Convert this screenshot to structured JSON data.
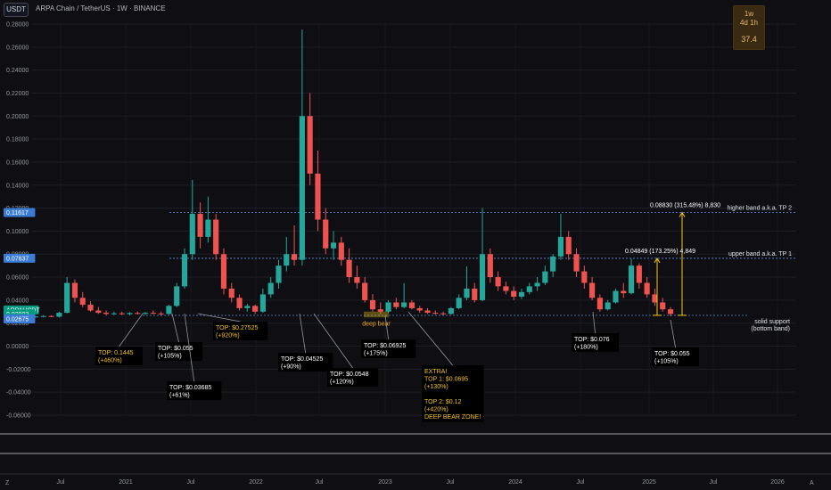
{
  "header": {
    "currency_button": "USDT",
    "title": "ARPA Chain / TetherUS · 1W · BINANCE"
  },
  "interval_box": {
    "line1": "1w",
    "line2": "4d 1h",
    "value": "37.4"
  },
  "price_tags": [
    {
      "label": "0.11617",
      "color": "#3a7bd5"
    },
    {
      "label": "0.07637",
      "color": "#3a7bd5"
    },
    {
      "label": "ARPAUSDT",
      "color": "#089981"
    },
    {
      "label": "0.02803",
      "color": "#089981"
    },
    {
      "label": "4d 4h",
      "color": "#089981"
    },
    {
      "label": "0.02675",
      "color": "#3a7bd5"
    }
  ],
  "colors": {
    "up": "#26a69a",
    "down": "#ef5350",
    "level": "#5b8fd9",
    "arrow": "#f5c518",
    "background": "#0f0f13"
  },
  "chart_data": {
    "type": "candlestick",
    "title": "ARPA Chain / TetherUS · 1W · BINANCE",
    "ylim": [
      -0.065,
      0.28
    ],
    "y_ticks": [
      "0.28000",
      "0.26000",
      "0.24000",
      "0.22000",
      "0.20000",
      "0.18000",
      "0.16000",
      "0.14000",
      "0.12000",
      "0.10000",
      "0.08000",
      "0.06000",
      "0.04000",
      "0.02000",
      "0.00000",
      "-0.02000",
      "-0.04000",
      "-0.06000"
    ],
    "x_ticks": [
      "Jul",
      "2021",
      "Jul",
      "2022",
      "Jul",
      "2023",
      "Jul",
      "2024",
      "Jul",
      "2025",
      "Jul",
      "2026"
    ],
    "levels": [
      {
        "price": 0.11617,
        "label": "higher band a.k.a. TP 2"
      },
      {
        "price": 0.07637,
        "label": "upper band a.k.a. TP 1"
      },
      {
        "price": 0.02675,
        "label": "solid support"
      },
      {
        "price": 0.02675,
        "label": "(bottom band)"
      }
    ],
    "measurements": [
      {
        "label": "0.08830 (315.48%) 8,830",
        "from": 0.028,
        "to": 0.11617
      },
      {
        "label": "0.04849 (173.25%) 4,849",
        "from": 0.028,
        "to": 0.07637
      }
    ],
    "annotations": [
      {
        "lines": [
          "TOP: 0.1445",
          "(+460%)"
        ],
        "color": "#f5c518"
      },
      {
        "lines": [
          "TOP: $0.055",
          "(+105%)"
        ],
        "color": "#ffffff"
      },
      {
        "lines": [
          "TOP: $0.03685",
          "(+61%)"
        ],
        "color": "#ffffff"
      },
      {
        "lines": [
          "TOP: $0.27525",
          "(+920%)"
        ],
        "color": "#f5c518"
      },
      {
        "lines": [
          "TOP: $0.04525",
          "(+90%)"
        ],
        "color": "#ffffff"
      },
      {
        "lines": [
          "TOP: $0.0548",
          "(+120%)"
        ],
        "color": "#ffffff"
      },
      {
        "lines": [
          "TOP: $0.06925",
          "(+175%)"
        ],
        "color": "#ffffff"
      },
      {
        "lines": [
          "EXTRA!",
          "TOP 1: $0.0695",
          "(+130%)",
          "",
          "TOP 2: $0.12",
          "(+420%)",
          "DEEP BEAR ZONE!"
        ],
        "color": "#f5c518"
      },
      {
        "lines": [
          "TOP: $0.076",
          "(+180%)"
        ],
        "color": "#ffffff"
      },
      {
        "lines": [
          "TOP: $0.055",
          "(+105%)"
        ],
        "color": "#ffffff"
      }
    ],
    "zone_label": "deep bear",
    "series": [
      {
        "values": [
          [
            0.0255,
            0.0262,
            0.0248,
            0.0258
          ],
          [
            0.0258,
            0.027,
            0.025,
            0.0262
          ],
          [
            0.0262,
            0.0268,
            0.0252,
            0.0256
          ],
          [
            0.0256,
            0.03,
            0.025,
            0.029
          ],
          [
            0.029,
            0.06,
            0.0285,
            0.055
          ],
          [
            0.055,
            0.058,
            0.038,
            0.042
          ],
          [
            0.042,
            0.047,
            0.034,
            0.036
          ],
          [
            0.036,
            0.039,
            0.03,
            0.031
          ],
          [
            0.031,
            0.034,
            0.028,
            0.029
          ],
          [
            0.029,
            0.031,
            0.0265,
            0.028
          ],
          [
            0.028,
            0.03,
            0.027,
            0.0285
          ],
          [
            0.0285,
            0.03,
            0.027,
            0.0278
          ],
          [
            0.0278,
            0.0295,
            0.0268,
            0.0288
          ],
          [
            0.0288,
            0.03,
            0.0275,
            0.0282
          ],
          [
            0.0282,
            0.0295,
            0.0272,
            0.029
          ],
          [
            0.029,
            0.031,
            0.0278,
            0.0284
          ],
          [
            0.0284,
            0.03,
            0.027,
            0.028
          ],
          [
            0.028,
            0.036,
            0.0275,
            0.035
          ],
          [
            0.035,
            0.055,
            0.034,
            0.052
          ],
          [
            0.052,
            0.085,
            0.05,
            0.08
          ],
          [
            0.08,
            0.1445,
            0.075,
            0.115
          ],
          [
            0.115,
            0.125,
            0.085,
            0.095
          ],
          [
            0.095,
            0.13,
            0.09,
            0.11
          ],
          [
            0.11,
            0.115,
            0.075,
            0.08
          ],
          [
            0.08,
            0.085,
            0.045,
            0.05
          ],
          [
            0.05,
            0.055,
            0.038,
            0.042
          ],
          [
            0.042,
            0.045,
            0.031,
            0.033
          ],
          [
            0.033,
            0.0368,
            0.03,
            0.035
          ],
          [
            0.035,
            0.036,
            0.028,
            0.03
          ],
          [
            0.03,
            0.05,
            0.029,
            0.045
          ],
          [
            0.045,
            0.06,
            0.042,
            0.055
          ],
          [
            0.055,
            0.075,
            0.05,
            0.07
          ],
          [
            0.07,
            0.095,
            0.065,
            0.08
          ],
          [
            0.08,
            0.105,
            0.07,
            0.075
          ],
          [
            0.075,
            0.2752,
            0.07,
            0.2
          ],
          [
            0.2,
            0.22,
            0.14,
            0.15
          ],
          [
            0.15,
            0.17,
            0.1,
            0.11
          ],
          [
            0.11,
            0.12,
            0.08,
            0.085
          ],
          [
            0.085,
            0.1,
            0.075,
            0.09
          ],
          [
            0.09,
            0.095,
            0.07,
            0.075
          ],
          [
            0.075,
            0.085,
            0.055,
            0.06
          ],
          [
            0.06,
            0.07,
            0.05,
            0.055
          ],
          [
            0.055,
            0.06,
            0.038,
            0.04
          ],
          [
            0.04,
            0.0453,
            0.03,
            0.032
          ],
          [
            0.032,
            0.038,
            0.028,
            0.03
          ],
          [
            0.03,
            0.04,
            0.029,
            0.038
          ],
          [
            0.038,
            0.042,
            0.032,
            0.034
          ],
          [
            0.034,
            0.0548,
            0.033,
            0.038
          ],
          [
            0.038,
            0.04,
            0.032,
            0.033
          ],
          [
            0.033,
            0.035,
            0.029,
            0.031
          ],
          [
            0.031,
            0.033,
            0.028,
            0.029
          ],
          [
            0.029,
            0.031,
            0.0275,
            0.0285
          ],
          [
            0.0285,
            0.03,
            0.027,
            0.028
          ],
          [
            0.028,
            0.034,
            0.0275,
            0.033
          ],
          [
            0.033,
            0.045,
            0.032,
            0.042
          ],
          [
            0.042,
            0.0693,
            0.04,
            0.05
          ],
          [
            0.05,
            0.055,
            0.038,
            0.04
          ],
          [
            0.04,
            0.12,
            0.039,
            0.08
          ],
          [
            0.08,
            0.085,
            0.055,
            0.06
          ],
          [
            0.06,
            0.065,
            0.048,
            0.052
          ],
          [
            0.052,
            0.056,
            0.045,
            0.048
          ],
          [
            0.048,
            0.052,
            0.04,
            0.043
          ],
          [
            0.043,
            0.05,
            0.041,
            0.047
          ],
          [
            0.047,
            0.055,
            0.045,
            0.052
          ],
          [
            0.052,
            0.06,
            0.048,
            0.055
          ],
          [
            0.055,
            0.07,
            0.053,
            0.065
          ],
          [
            0.065,
            0.08,
            0.06,
            0.078
          ],
          [
            0.078,
            0.115,
            0.075,
            0.095
          ],
          [
            0.095,
            0.1,
            0.075,
            0.08
          ],
          [
            0.08,
            0.085,
            0.06,
            0.065
          ],
          [
            0.065,
            0.07,
            0.05,
            0.055
          ],
          [
            0.055,
            0.06,
            0.04,
            0.042
          ],
          [
            0.042,
            0.045,
            0.03,
            0.032
          ],
          [
            0.032,
            0.04,
            0.031,
            0.038
          ],
          [
            0.038,
            0.05,
            0.037,
            0.048
          ],
          [
            0.048,
            0.055,
            0.042,
            0.046
          ],
          [
            0.046,
            0.076,
            0.045,
            0.07
          ],
          [
            0.07,
            0.072,
            0.05,
            0.055
          ],
          [
            0.055,
            0.06,
            0.042,
            0.045
          ],
          [
            0.045,
            0.05,
            0.035,
            0.038
          ],
          [
            0.038,
            0.042,
            0.03,
            0.032
          ],
          [
            0.032,
            0.034,
            0.026,
            0.028
          ]
        ]
      }
    ]
  }
}
